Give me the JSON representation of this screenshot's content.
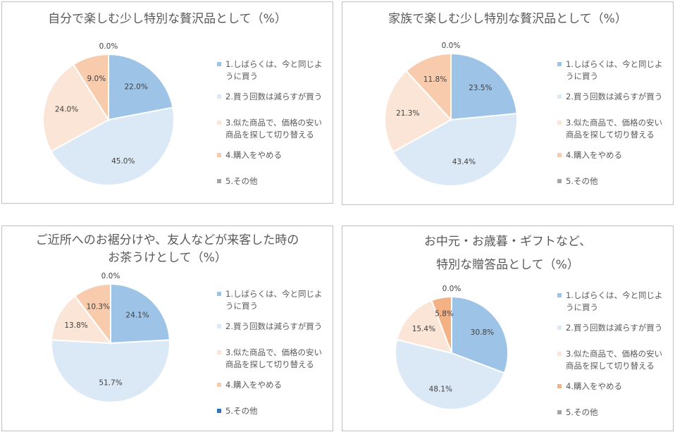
{
  "chart_data": [
    {
      "type": "pie",
      "title": "自分で楽しむ少し特別な贅沢品として（%）",
      "title_lines": [
        "自分で楽しむ少し特別な贅沢品として（%）"
      ],
      "categories": [
        "1.しばらくは、今と同じように買う",
        "2.買う回数は減らすが買う",
        "3.似た商品で、価格の安い商品を探して切り替える",
        "4.購入をやめる",
        "5.その他"
      ],
      "legend_lines": [
        [
          "1.しばらくは、今と同じよ",
          "うに買う"
        ],
        [
          "2.買う回数は減らすが買う"
        ],
        [
          "3.似た商品で、価格の安い",
          "商品を探して切り替える"
        ],
        [
          "4.購入をやめる"
        ],
        [
          "5.その他"
        ]
      ],
      "values": [
        22.0,
        45.0,
        24.0,
        9.0,
        0.0
      ],
      "labels": [
        "22.0%",
        "45.0%",
        "24.0%",
        "9.0%",
        "0.0%"
      ],
      "colors": [
        "#9dc3e6",
        "#dbe8f6",
        "#fbe5d6",
        "#f8cbad",
        "#a5a5a5"
      ],
      "legend_colors": [
        "#9dc3e6",
        "#dbe8f6",
        "#fbe5d6",
        "#f8cbad",
        "#a5a5a5"
      ],
      "legend_position": "right"
    },
    {
      "type": "pie",
      "title": "家族で楽しむ少し特別な贅沢品として（%）",
      "title_lines": [
        "家族で楽しむ少し特別な贅沢品として（%）"
      ],
      "categories": [
        "1.しばらくは、今と同じように買う",
        "2.買う回数は減らすが買う",
        "3.似た商品で、価格の安い商品を探して切り替える",
        "4.購入をやめる",
        "5.その他"
      ],
      "legend_lines": [
        [
          "1.しばらくは、今と同じよ",
          "うに買う"
        ],
        [
          "2.買う回数は減らすが買う"
        ],
        [
          "3.似た商品で、価格の安い",
          "商品を探して切り替える"
        ],
        [
          "4.購入をやめる"
        ],
        [
          "5.その他"
        ]
      ],
      "values": [
        23.5,
        43.4,
        21.3,
        11.8,
        0.0
      ],
      "labels": [
        "23.5%",
        "43.4%",
        "21.3%",
        "11.8%",
        "0.0%"
      ],
      "colors": [
        "#9dc3e6",
        "#dbe8f6",
        "#fbe5d6",
        "#f8cbad",
        "#a5a5a5"
      ],
      "legend_colors": [
        "#9dc3e6",
        "#dbe8f6",
        "#fbe5d6",
        "#f8cbad",
        "#a5a5a5"
      ],
      "legend_position": "right"
    },
    {
      "type": "pie",
      "title": "ご近所へのお裾分けや、友人などが来客した時のお茶うけとして（%）",
      "title_lines": [
        "ご近所へのお裾分けや、友人などが来客した時の",
        "お茶うけとして（%）"
      ],
      "categories": [
        "1.しばらくは、今と同じように買う",
        "2.買う回数は減らすが買う",
        "3.似た商品で、価格の安い商品を探して切り替える",
        "4.購入をやめる",
        "5.その他"
      ],
      "legend_lines": [
        [
          "1.しばらくは、今と同じよ",
          "うに買う"
        ],
        [
          "2.買う回数は減らすが買う"
        ],
        [
          "3.似た商品で、価格の安い",
          "商品を探して切り替える"
        ],
        [
          "4.購入をやめる"
        ],
        [
          "5.その他"
        ]
      ],
      "values": [
        24.1,
        51.7,
        13.8,
        10.3,
        0.0
      ],
      "labels": [
        "24.1%",
        "51.7%",
        "13.8%",
        "10.3%",
        "0.0%"
      ],
      "colors": [
        "#9dc3e6",
        "#dbe8f6",
        "#fbe5d6",
        "#f8cbad",
        "#2e75b6"
      ],
      "legend_colors": [
        "#9dc3e6",
        "#dbe8f6",
        "#fbe5d6",
        "#f8cbad",
        "#2e75b6"
      ],
      "legend_position": "right"
    },
    {
      "type": "pie",
      "title": "お中元・お歳暮・ギフトなど、特別な贈答品として（%）",
      "title_lines": [
        "お中元・お歳暮・ギフトなど、",
        "特別な贈答品として（%）"
      ],
      "categories": [
        "1.しばらくは、今と同じように買う",
        "2.買う回数は減らすが買う",
        "3.似た商品で、価格の安い商品を探して切り替える",
        "4.購入をやめる",
        "5.その他"
      ],
      "legend_lines": [
        [
          "1.しばらくは、今と同じよ",
          "うに買う"
        ],
        [
          "2.買う回数は減らすが買う"
        ],
        [
          "3.似た商品で、価格の安い",
          "商品を探して切り替える"
        ],
        [
          "4.購入をやめる"
        ],
        [
          "5.その他"
        ]
      ],
      "values": [
        30.8,
        48.1,
        15.4,
        5.8,
        0.0
      ],
      "labels": [
        "30.8%",
        "48.1%",
        "15.4%",
        "5.8%",
        "0.0%"
      ],
      "colors": [
        "#9dc3e6",
        "#dbe8f6",
        "#fbe5d6",
        "#f4b183",
        "#a5a5a5"
      ],
      "legend_colors": [
        "#9dc3e6",
        "#dbe8f6",
        "#fbe5d6",
        "#f4b183",
        "#a5a5a5"
      ],
      "legend_position": "right"
    }
  ]
}
